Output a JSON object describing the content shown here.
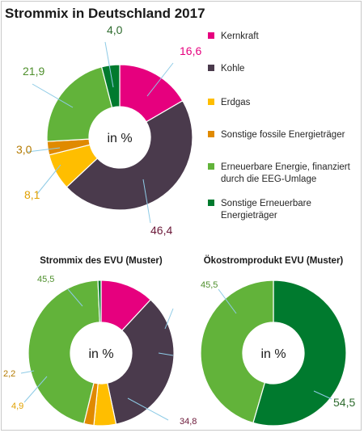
{
  "title": "Strommix in Deutschland 2017",
  "center_label": "in %",
  "legend": [
    {
      "label": "Kernkraft",
      "color": "#E6007E"
    },
    {
      "label": "Kohle",
      "color": "#4A3A4C"
    },
    {
      "label": "Erdgas",
      "color": "#FFBE00"
    },
    {
      "label": "Sonstige fossile Energieträger",
      "color": "#E08A00"
    },
    {
      "label": "Erneuerbare Energie, finanziert|durch die EEG-Umlage",
      "color": "#62B33A"
    },
    {
      "label": "Sonstige Erneuerbare|Energieträger",
      "color": "#007A2E"
    }
  ],
  "chart_data": [
    {
      "type": "pie",
      "title": "Strommix in Deutschland 2017",
      "center_label": "in %",
      "categories": [
        "Kernkraft",
        "Kohle",
        "Erdgas",
        "Sonstige fossile Energieträger",
        "Erneuerbare Energie, finanziert durch die EEG-Umlage",
        "Sonstige Erneuerbare Energieträger"
      ],
      "values": [
        16.6,
        46.4,
        8.1,
        3.0,
        21.9,
        4.0
      ],
      "labels": [
        "16,6",
        "46,4",
        "8,1",
        "3,0",
        "21,9",
        "4,0"
      ]
    },
    {
      "type": "pie",
      "title": "Strommix des EVU (Muster)",
      "center_label": "in %",
      "categories": [
        "Kernkraft",
        "Kohle",
        "Erdgas",
        "Sonstige fossile Energieträger",
        "Erneuerbare Energie, finanziert durch die EEG-Umlage",
        "Sonstige Erneuerbare Energieträger"
      ],
      "values": [
        11.9,
        34.8,
        4.9,
        2.2,
        45.5,
        0.7
      ],
      "labels": [
        "",
        "34,8",
        "4,9",
        "2,2",
        "45,5",
        ""
      ]
    },
    {
      "type": "pie",
      "title": "Ökostromprodukt EVU (Muster)",
      "center_label": "in %",
      "categories": [
        "Sonstige Erneuerbare Energieträger",
        "Erneuerbare Energie, finanziert durch die EEG-Umlage"
      ],
      "values": [
        54.5,
        45.5
      ],
      "labels": [
        "54,5",
        "45,5"
      ],
      "colors": [
        "#007A2E",
        "#62B33A"
      ]
    }
  ]
}
